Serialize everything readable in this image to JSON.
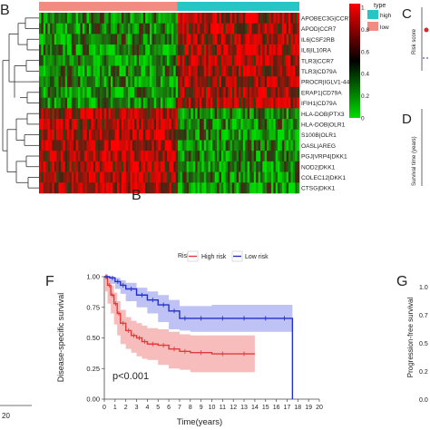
{
  "panels": {
    "b_letter": "B",
    "c_letter": "C",
    "d_letter": "D",
    "b2_letter": "B",
    "f_letter": "F",
    "g_letter": "G"
  },
  "heatmap": {
    "legend_title": "type",
    "legend_items": [
      {
        "label": "high",
        "color": "#26c6c6"
      },
      {
        "label": "low",
        "color": "#f28b82"
      }
    ],
    "color_scale_ticks": [
      "1",
      "0.8",
      "0.6",
      "0.4",
      "0.2",
      "0"
    ],
    "colors": {
      "high": "#ff0000",
      "mid": "#000000",
      "low": "#00dd00"
    },
    "rows": [
      "APOBEC3G|CCR7",
      "APOD|CCR7",
      "IL6|CSF2RB",
      "IL6|IL10RA",
      "TLR3|CCR7",
      "TLR3|CD79A",
      "PROCR|IGLV1-44",
      "ERAP1|CD79A",
      "IFIH1|CD79A",
      "HLA-DOB|PTX3",
      "HLA-DOB|OLR1",
      "S100B|OLR1",
      "OASL|AREG",
      "PGJ|VRP4|DKK1",
      "NOD2|DKK1",
      "COLEC12|DKK1",
      "CTSG|DKK1"
    ]
  },
  "side_panels": {
    "c_ylabel": "Risk score",
    "d_ylabel": "Survival time (years)",
    "g_ylabel": "Progression-free survival",
    "g_ticks": [
      "1.0",
      "0.7",
      "0.5",
      "0.2",
      "0.0"
    ]
  },
  "left_stub": {
    "tick_label": "20"
  },
  "chart_data": {
    "type": "line",
    "title": "",
    "legend_title": "Risk",
    "xlabel": "Time(years)",
    "ylabel": "Disease-specific survival",
    "xlim": [
      0,
      20
    ],
    "ylim": [
      0,
      1
    ],
    "x_ticks": [
      "0",
      "1",
      "2",
      "3",
      "4",
      "5",
      "6",
      "7",
      "8",
      "9",
      "10",
      "11",
      "12",
      "13",
      "14",
      "15",
      "16",
      "17",
      "18",
      "19",
      "20"
    ],
    "y_ticks": [
      "0.00",
      "0.25",
      "0.50",
      "0.75",
      "1.00"
    ],
    "annotation": "p<0.001",
    "series": [
      {
        "name": "High risk",
        "color": "#e23b3b",
        "band_color": "#f4a6a6",
        "x": [
          0,
          0.3,
          0.6,
          0.9,
          1.2,
          1.5,
          2,
          2.5,
          3,
          3.5,
          4,
          5,
          6,
          7,
          8,
          10,
          12,
          14
        ],
        "y": [
          1.0,
          0.93,
          0.85,
          0.78,
          0.7,
          0.62,
          0.56,
          0.52,
          0.5,
          0.47,
          0.45,
          0.44,
          0.41,
          0.39,
          0.38,
          0.37,
          0.37,
          0.37
        ],
        "lower": [
          1.0,
          0.88,
          0.78,
          0.7,
          0.61,
          0.52,
          0.45,
          0.41,
          0.38,
          0.35,
          0.33,
          0.32,
          0.28,
          0.25,
          0.24,
          0.22,
          0.22,
          0.22
        ],
        "upper": [
          1.0,
          0.98,
          0.93,
          0.87,
          0.8,
          0.73,
          0.67,
          0.64,
          0.62,
          0.6,
          0.58,
          0.57,
          0.55,
          0.53,
          0.52,
          0.52,
          0.52,
          0.52
        ]
      },
      {
        "name": "Low risk",
        "color": "#2431c9",
        "band_color": "#a9aef0",
        "x": [
          0,
          0.5,
          1,
          1.5,
          2,
          3,
          4,
          5,
          6,
          7,
          8,
          10,
          12,
          14,
          16,
          17.5,
          17.5
        ],
        "y": [
          1.0,
          0.99,
          0.96,
          0.93,
          0.9,
          0.85,
          0.81,
          0.77,
          0.72,
          0.66,
          0.66,
          0.66,
          0.66,
          0.66,
          0.66,
          0.66,
          0.0
        ],
        "lower": [
          1.0,
          0.98,
          0.94,
          0.9,
          0.86,
          0.8,
          0.75,
          0.7,
          0.63,
          0.57,
          0.56,
          0.55,
          0.55,
          0.55,
          0.55,
          0.55,
          0.55
        ],
        "upper": [
          1.0,
          1.0,
          0.99,
          0.97,
          0.95,
          0.91,
          0.88,
          0.85,
          0.81,
          0.76,
          0.76,
          0.77,
          0.77,
          0.77,
          0.77,
          0.77,
          0.77
        ]
      }
    ]
  }
}
